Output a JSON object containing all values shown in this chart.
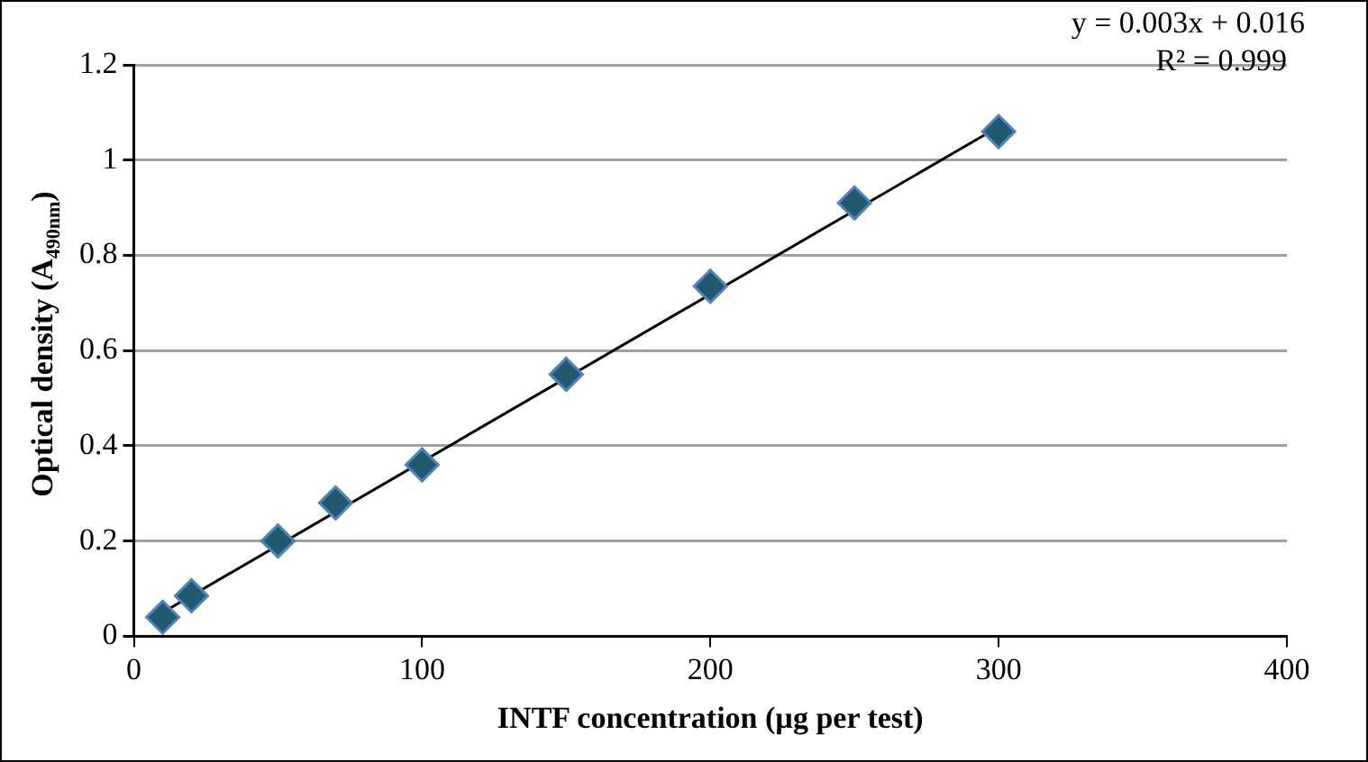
{
  "chart_data": {
    "type": "scatter",
    "xlabel": "INTF concentration (µg per test)",
    "ylabel": "Optical density (A$_{490nm}$)",
    "x": [
      10,
      20,
      50,
      70,
      100,
      150,
      200,
      250,
      300
    ],
    "series": [
      {
        "color": "#215a6e",
        "values": [
          0.04,
          0.085,
          0.2,
          0.28,
          0.36,
          0.55,
          0.735,
          0.91,
          1.06
        ],
        "marker": "diamond"
      },
      {
        "type": "line",
        "color": "#000000",
        "x": [
          10,
          300
        ],
        "values": [
          0.05,
          1.07
        ],
        "marker": "none"
      }
    ],
    "xlim": [
      0,
      400
    ],
    "xticks": [
      0,
      100,
      200,
      300,
      400
    ],
    "ylim": [
      0,
      1.2
    ],
    "yticks": [
      0,
      0.2,
      0.4,
      0.6,
      0.8,
      1,
      1.2
    ],
    "grid": "y",
    "legend": false,
    "annotations": [
      "y = 0.003x + 0.016",
      "R² = 0.999"
    ]
  }
}
